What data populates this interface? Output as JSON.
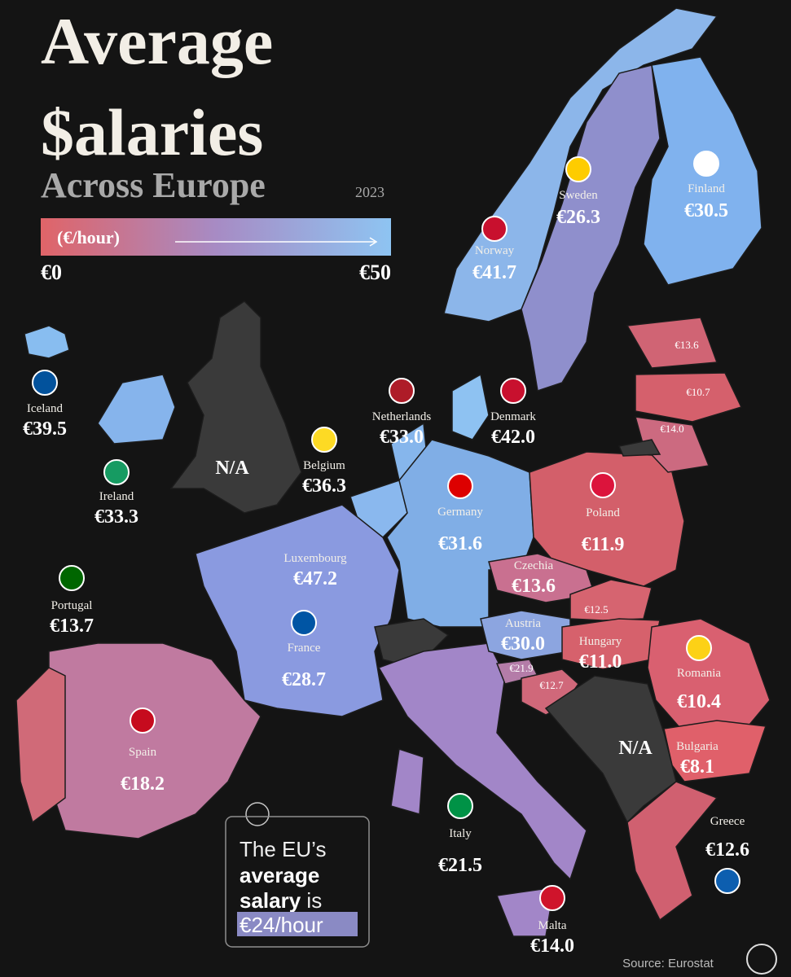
{
  "header": {
    "title_line1": "Average",
    "title_line2": "$alaries",
    "subtitle": "Across Europe",
    "year": "2023"
  },
  "legend": {
    "unit": "(€/hour)",
    "min": "€0",
    "max": "€50"
  },
  "countries": [
    {
      "name": "Norway",
      "value": "€41.7"
    },
    {
      "name": "Sweden",
      "value": "€26.3"
    },
    {
      "name": "Finland",
      "value": "€30.5"
    },
    {
      "name": "Iceland",
      "value": "€39.5"
    },
    {
      "name": "Ireland",
      "value": "€33.3"
    },
    {
      "name": "Netherlands",
      "value": "€33.0"
    },
    {
      "name": "Denmark",
      "value": "€42.0"
    },
    {
      "name": "Belgium",
      "value": "€36.3"
    },
    {
      "name": "Germany",
      "value": "€31.6"
    },
    {
      "name": "Poland",
      "value": "€11.9"
    },
    {
      "name": "Luxembourg",
      "value": "€47.2"
    },
    {
      "name": "Czechia",
      "value": "€13.6"
    },
    {
      "name": "Austria",
      "value": "€30.0"
    },
    {
      "name": "Hungary",
      "value": "€11.0"
    },
    {
      "name": "Romania",
      "value": "€10.4"
    },
    {
      "name": "Portugal",
      "value": "€13.7"
    },
    {
      "name": "France",
      "value": "€28.7"
    },
    {
      "name": "Spain",
      "value": "€18.2"
    },
    {
      "name": "Bulgaria",
      "value": "€8.1"
    },
    {
      "name": "Italy",
      "value": "€21.5"
    },
    {
      "name": "Greece",
      "value": "€12.6"
    },
    {
      "name": "Malta",
      "value": "€14.0"
    }
  ],
  "small_labels": [
    "€13.6",
    "€10.7",
    "€14.0",
    "€12.5",
    "€21.9",
    "€12.7"
  ],
  "na_labels": [
    "N/A",
    "N/A"
  ],
  "callout": {
    "line1": "The EU’s",
    "line2": "average",
    "line3_bold": "salary",
    "line3_rest": "is",
    "highlight": "€24/hour"
  },
  "source": "Source: Eurostat"
}
